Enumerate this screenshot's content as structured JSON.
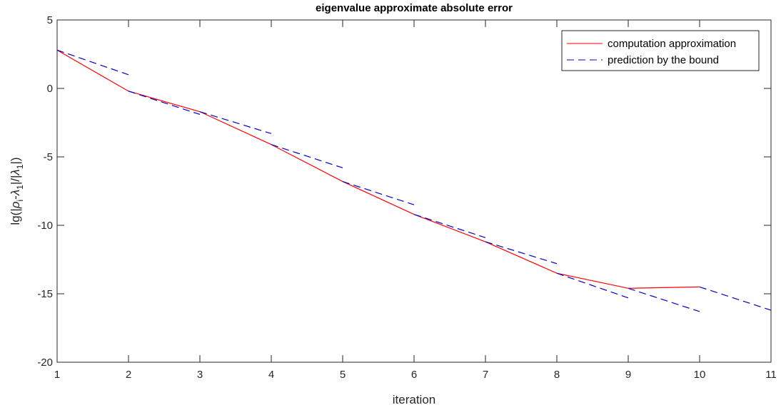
{
  "chart_data": {
    "type": "line",
    "title": "eigenvalue approximate absolute error",
    "xlabel": "iteration",
    "ylabel_parts": {
      "pre": "lg(|",
      "rho": "ρ",
      "i": "i",
      "mid": "-",
      "lambda1": "λ",
      "one1": "1",
      "sep": "|/|",
      "lambda2": "λ",
      "one2": "1",
      "post": "|)"
    },
    "xlim": [
      1,
      11
    ],
    "ylim": [
      -20,
      5
    ],
    "xticks": [
      1,
      2,
      3,
      4,
      5,
      6,
      7,
      8,
      9,
      10,
      11
    ],
    "yticks": [
      5,
      0,
      -5,
      -10,
      -15,
      -20
    ],
    "xtick_labels": [
      "1",
      "2",
      "3",
      "4",
      "5",
      "6",
      "7",
      "8",
      "9",
      "10",
      "11"
    ],
    "ytick_labels": [
      "5",
      "0",
      "-5",
      "-10",
      "-15",
      "-20"
    ],
    "grid": false,
    "legend_position": "top-right",
    "series": [
      {
        "name": "computation approximation",
        "style": "solid",
        "color": "#ff0000",
        "x": [
          1,
          2,
          3,
          4,
          5,
          6,
          7,
          8,
          9,
          10
        ],
        "y": [
          2.8,
          -0.2,
          -1.7,
          -4.1,
          -6.8,
          -9.2,
          -11.2,
          -13.5,
          -14.6,
          -14.5
        ]
      },
      {
        "name": "prediction by the bound",
        "style": "dashed",
        "color": "#0000cc",
        "segments": [
          {
            "x": [
              1,
              2
            ],
            "y": [
              2.8,
              1.0
            ]
          },
          {
            "x": [
              2,
              3
            ],
            "y": [
              -0.2,
              -1.9
            ]
          },
          {
            "x": [
              3,
              4
            ],
            "y": [
              -1.7,
              -3.3
            ]
          },
          {
            "x": [
              4,
              5
            ],
            "y": [
              -4.1,
              -5.8
            ]
          },
          {
            "x": [
              5,
              6
            ],
            "y": [
              -6.8,
              -8.5
            ]
          },
          {
            "x": [
              6,
              7
            ],
            "y": [
              -9.2,
              -10.9
            ]
          },
          {
            "x": [
              7,
              8
            ],
            "y": [
              -11.2,
              -12.8
            ]
          },
          {
            "x": [
              8,
              9
            ],
            "y": [
              -13.5,
              -15.3
            ]
          },
          {
            "x": [
              9,
              10
            ],
            "y": [
              -14.6,
              -16.3
            ]
          },
          {
            "x": [
              10,
              11
            ],
            "y": [
              -14.5,
              -16.2
            ]
          }
        ]
      }
    ]
  }
}
